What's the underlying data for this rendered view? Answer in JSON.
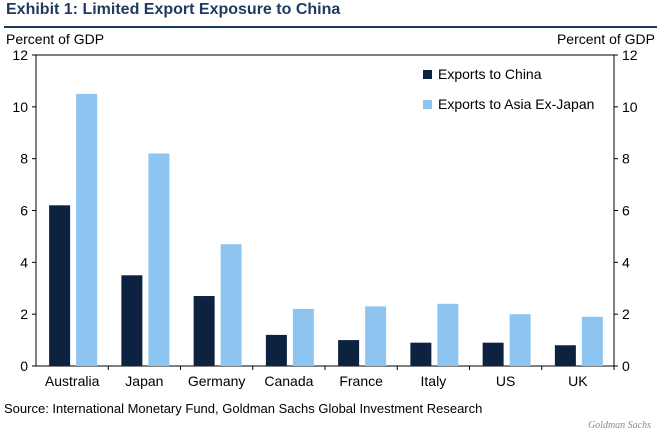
{
  "title": "Exhibit 1: Limited Export Exposure to China",
  "source": "Source: International Monetary Fund, Goldman Sachs Global Investment Research",
  "brand": "Goldman Sachs",
  "chart_data": {
    "type": "bar",
    "title": "",
    "ylabel_left": "Percent of GDP",
    "ylabel_right": "Percent of GDP",
    "ylim": [
      0,
      12
    ],
    "yticks": [
      0,
      2,
      4,
      6,
      8,
      10,
      12
    ],
    "grid": false,
    "legend_position": "top-right",
    "categories": [
      "Australia",
      "Japan",
      "Germany",
      "Canada",
      "France",
      "Italy",
      "US",
      "UK"
    ],
    "series": [
      {
        "name": "Exports to China",
        "color": "#0d2240",
        "values": [
          6.2,
          3.5,
          2.7,
          1.2,
          1.0,
          0.9,
          0.9,
          0.8
        ]
      },
      {
        "name": "Exports to Asia Ex-Japan",
        "color": "#8ec5f0",
        "values": [
          10.5,
          8.2,
          4.7,
          2.2,
          2.3,
          2.4,
          2.0,
          1.9
        ]
      }
    ]
  }
}
